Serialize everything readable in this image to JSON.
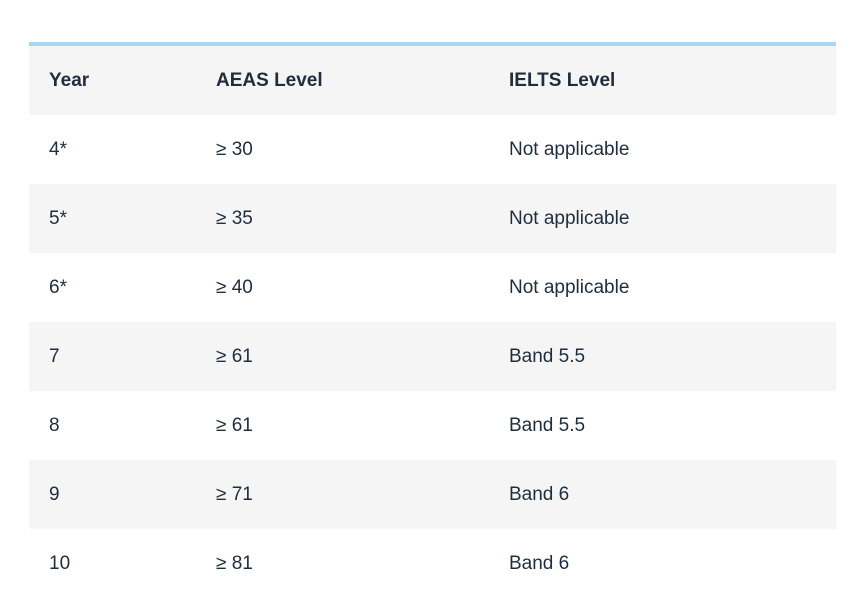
{
  "table": {
    "headers": [
      "Year",
      "AEAS Level",
      "IELTS Level"
    ],
    "rows": [
      [
        "4*",
        "≥ 30",
        "Not applicable"
      ],
      [
        "5*",
        "≥ 35",
        "Not applicable"
      ],
      [
        "6*",
        "≥ 40",
        "Not applicable"
      ],
      [
        "7",
        "≥ 61",
        "Band 5.5"
      ],
      [
        "8",
        "≥ 61",
        "Band 5.5"
      ],
      [
        "9",
        "≥ 71",
        "Band 6"
      ],
      [
        "10",
        "≥ 81",
        "Band 6"
      ]
    ]
  },
  "colors": {
    "top_border": "#a7d7f1",
    "striped_row": "#f5f5f5",
    "text": "#1f2d3d"
  }
}
